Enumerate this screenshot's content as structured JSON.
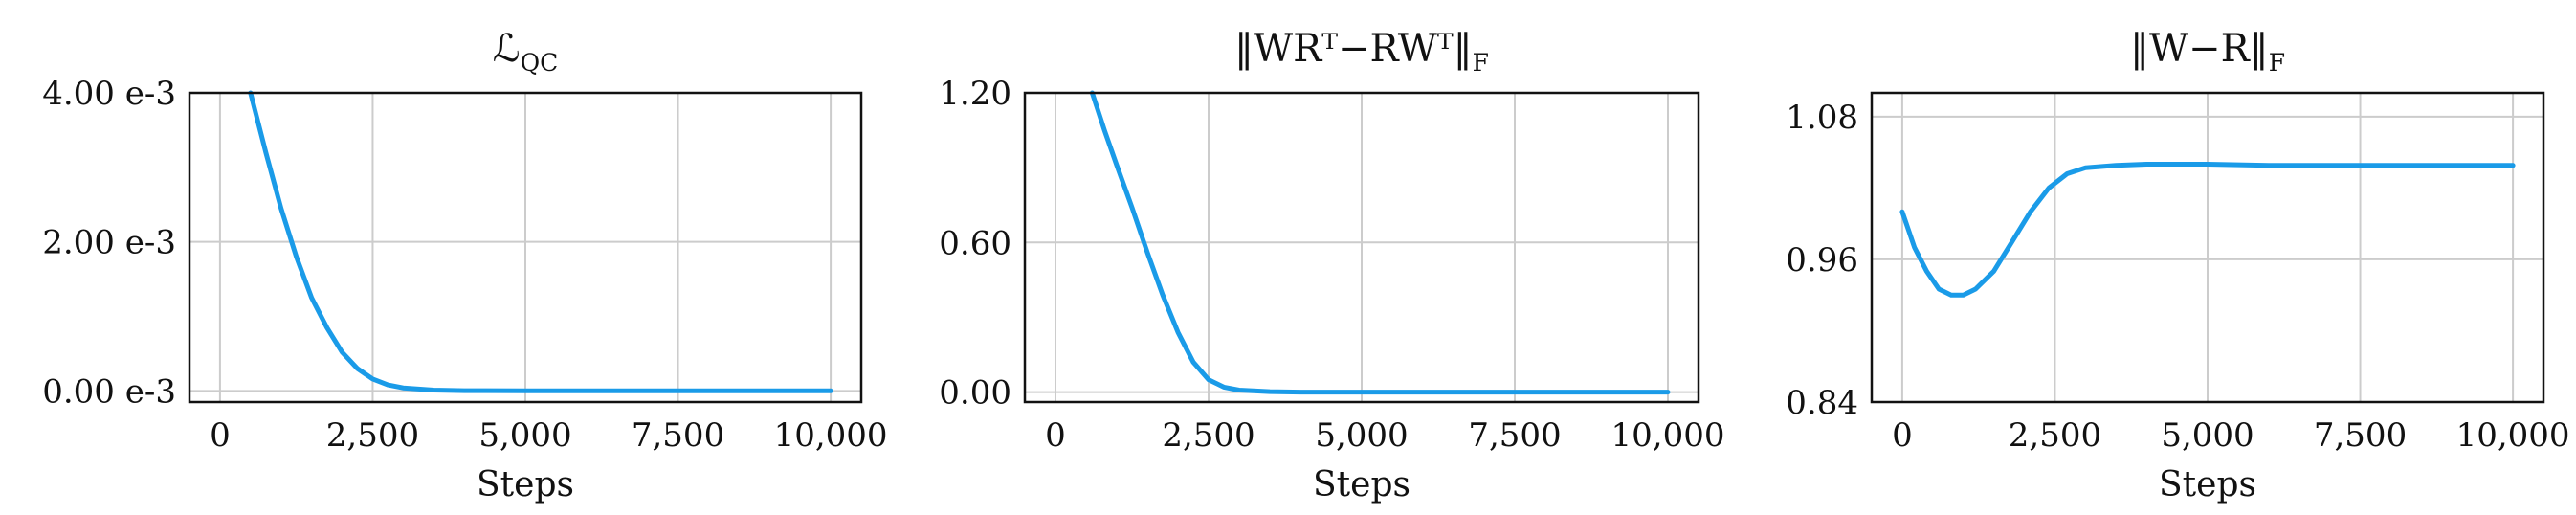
{
  "chart_data": [
    {
      "type": "line",
      "title": "ℒ",
      "title_subscript": "QC",
      "xlabel": "Steps",
      "ylabel": "",
      "xlim": [
        -500,
        10500
      ],
      "ylim": [
        -0.00015,
        0.004
      ],
      "x_ticks": [
        0,
        2500,
        5000,
        7500,
        10000
      ],
      "x_tick_labels": [
        "0",
        "2,500",
        "5,000",
        "7,500",
        "10,000"
      ],
      "y_ticks": [
        0,
        0.002,
        0.004
      ],
      "y_tick_labels": [
        "0.00 e-3",
        "2.00 e-3",
        "4.00 e-3"
      ],
      "grid": true,
      "color": "#1a9be8",
      "series": [
        {
          "x": [
            500,
            750,
            1000,
            1250,
            1500,
            1750,
            2000,
            2250,
            2500,
            2750,
            3000,
            3500,
            4000,
            5000,
            6000,
            7000,
            8000,
            9000,
            10000
          ],
          "values": [
            0.004,
            0.0032,
            0.00245,
            0.0018,
            0.00125,
            0.00085,
            0.00052,
            0.0003,
            0.00016,
            8e-05,
            4e-05,
            1e-05,
            3e-06,
            0.0,
            0.0,
            0.0,
            0.0,
            0.0,
            0.0
          ]
        }
      ]
    },
    {
      "type": "line",
      "title": "‖WRᵀ−RWᵀ‖",
      "title_subscript": "F",
      "xlabel": "Steps",
      "ylabel": "",
      "xlim": [
        -500,
        10500
      ],
      "ylim": [
        -0.04,
        1.2
      ],
      "x_ticks": [
        0,
        2500,
        5000,
        7500,
        10000
      ],
      "x_tick_labels": [
        "0",
        "2,500",
        "5,000",
        "7,500",
        "10,000"
      ],
      "y_ticks": [
        0,
        0.6,
        1.2
      ],
      "y_tick_labels": [
        "0.00",
        "0.60",
        "1.20"
      ],
      "grid": true,
      "color": "#1a9be8",
      "series": [
        {
          "x": [
            600,
            800,
            1000,
            1250,
            1500,
            1750,
            2000,
            2250,
            2500,
            2750,
            3000,
            3500,
            4000,
            5000,
            6000,
            7000,
            8000,
            9000,
            10000
          ],
          "values": [
            1.2,
            1.05,
            0.91,
            0.74,
            0.56,
            0.39,
            0.24,
            0.12,
            0.05,
            0.02,
            0.008,
            0.002,
            0.0,
            0.0,
            0.0,
            0.0,
            0.0,
            0.0,
            0.0
          ]
        }
      ]
    },
    {
      "type": "line",
      "title": "‖W−R‖",
      "title_subscript": "F",
      "xlabel": "Steps",
      "ylabel": "",
      "xlim": [
        -500,
        10500
      ],
      "ylim": [
        0.84,
        1.1
      ],
      "x_ticks": [
        0,
        2500,
        5000,
        7500,
        10000
      ],
      "x_tick_labels": [
        "0",
        "2,500",
        "5,000",
        "7,500",
        "10,000"
      ],
      "y_ticks": [
        0.84,
        0.96,
        1.08
      ],
      "y_tick_labels": [
        "0.84",
        "0.96",
        "1.08"
      ],
      "grid": true,
      "color": "#1a9be8",
      "series": [
        {
          "x": [
            0,
            200,
            400,
            600,
            800,
            1000,
            1200,
            1500,
            1800,
            2100,
            2400,
            2700,
            3000,
            3500,
            4000,
            5000,
            6000,
            7000,
            8000,
            9000,
            10000
          ],
          "values": [
            1.0,
            0.97,
            0.95,
            0.935,
            0.93,
            0.93,
            0.935,
            0.95,
            0.975,
            1.0,
            1.02,
            1.032,
            1.037,
            1.039,
            1.04,
            1.04,
            1.039,
            1.039,
            1.039,
            1.039,
            1.039
          ]
        }
      ]
    }
  ]
}
